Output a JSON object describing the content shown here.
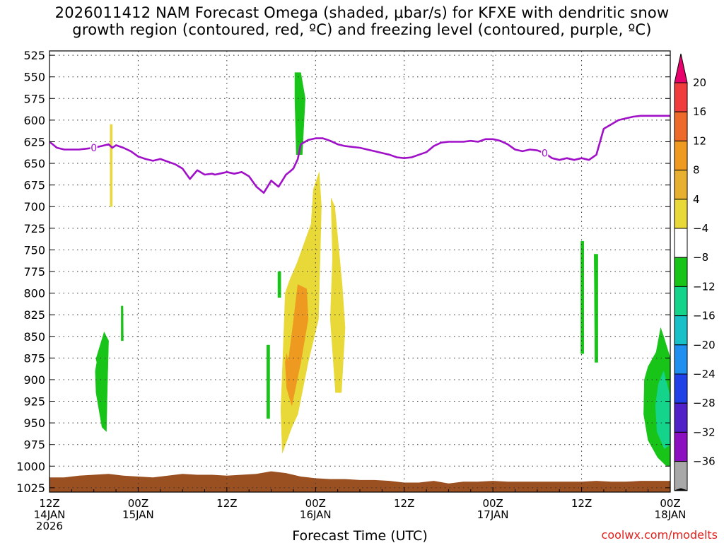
{
  "title": {
    "line1": "2026011412 NAM Forecast Omega (shaded, μbar/s) for KFXE with dendritic snow",
    "line2": "growth region (contoured, red, ºC) and freezing level (contoured, purple, ºC)"
  },
  "credit": "coolwx.com/modelts",
  "chart_data": {
    "type": "area",
    "title": "2026011412 NAM Forecast Omega (shaded, μbar/s) for KFXE with dendritic snow growth region (contoured, red, ºC) and freezing level (contoured, purple, ºC)",
    "xlabel": "Forecast Time (UTC)",
    "ylabel": "",
    "ylim": [
      1030,
      520
    ],
    "xlim": [
      0,
      84
    ],
    "y_ticks": [
      "525",
      "550",
      "575",
      "600",
      "625",
      "650",
      "675",
      "700",
      "725",
      "750",
      "775",
      "800",
      "825",
      "850",
      "875",
      "900",
      "925",
      "950",
      "975",
      "1000",
      "1025"
    ],
    "x_ticks": [
      {
        "hour": 0,
        "line1": "12Z",
        "line2": "14JAN",
        "line3": "2026"
      },
      {
        "hour": 12,
        "line1": "00Z",
        "line2": "15JAN",
        "line3": ""
      },
      {
        "hour": 24,
        "line1": "12Z",
        "line2": "",
        "line3": ""
      },
      {
        "hour": 36,
        "line1": "00Z",
        "line2": "16JAN",
        "line3": ""
      },
      {
        "hour": 48,
        "line1": "12Z",
        "line2": "",
        "line3": ""
      },
      {
        "hour": 60,
        "line1": "00Z",
        "line2": "17JAN",
        "line3": ""
      },
      {
        "hour": 72,
        "line1": "12Z",
        "line2": "",
        "line3": ""
      },
      {
        "hour": 84,
        "line1": "00Z",
        "line2": "18JAN",
        "line3": ""
      }
    ],
    "grid": true,
    "colorbar": {
      "labels": [
        "20",
        "16",
        "12",
        "8",
        "4",
        "−4",
        "−8",
        "−12",
        "−16",
        "−20",
        "−24",
        "−28",
        "−32",
        "−36"
      ],
      "colors": [
        "#e8006c",
        "#f03c3c",
        "#ee6a2a",
        "#ee9a20",
        "#e8b030",
        "#e8d838",
        "#ffffff",
        "#18c418",
        "#14d48c",
        "#18c0c8",
        "#2090f0",
        "#2040e8",
        "#5020c8",
        "#8c10c0",
        "#a8a8a8",
        "#000000"
      ]
    },
    "freezing_level": {
      "name": "freezing level",
      "label": "0",
      "color": "#a010c8",
      "x": [
        0,
        1,
        2,
        3,
        4,
        5,
        6,
        7,
        8,
        8.5,
        9,
        10,
        11,
        12,
        13,
        14,
        15,
        16,
        17,
        18,
        19,
        20,
        21,
        22,
        22.4,
        23,
        24,
        25,
        26,
        27,
        28,
        29,
        30,
        31,
        32,
        32.6,
        33,
        33.6,
        34,
        35,
        36,
        37,
        38,
        39,
        40,
        41,
        42,
        43,
        44,
        45,
        46,
        47,
        48,
        49,
        50,
        51,
        52,
        53,
        54,
        55,
        56,
        57,
        58,
        59,
        60,
        61,
        62,
        63,
        64,
        65,
        66,
        67,
        68,
        69,
        70,
        71,
        72,
        73,
        74,
        75,
        76,
        77,
        78,
        79,
        80,
        80.6,
        81,
        82,
        83,
        84
      ],
      "y": [
        625,
        632,
        634,
        634,
        634,
        633,
        632,
        630,
        628,
        632,
        629,
        632,
        636,
        642,
        645,
        647,
        645,
        648,
        651,
        656,
        668,
        658,
        663,
        662,
        663,
        662,
        660,
        662,
        660,
        665,
        677,
        684,
        670,
        677,
        663,
        659,
        656,
        645,
        628,
        623,
        621,
        621,
        624,
        628,
        630,
        631,
        632,
        634,
        636,
        638,
        640,
        643,
        644,
        643,
        640,
        637,
        630,
        626,
        625,
        625,
        625,
        624,
        625,
        622,
        622,
        624,
        628,
        634,
        636,
        634,
        635,
        638,
        644,
        646,
        644,
        646,
        644,
        646,
        640,
        610,
        605,
        600,
        598,
        596,
        595,
        595,
        595,
        595,
        595,
        595
      ]
    },
    "omega_regions": [
      {
        "category": "4 to 8",
        "color": "#e8d838",
        "x": [
          8.2,
          8.5,
          8.5,
          8.2
        ],
        "y": [
          605,
          605,
          700,
          700
        ]
      },
      {
        "category": "-4 to -8",
        "color": "#18c418",
        "x": [
          6.3,
          7.4,
          8.0,
          7.8,
          7.7,
          7.1,
          6.3,
          6.2,
          6.4
        ],
        "y": [
          876,
          845,
          855,
          920,
          960,
          955,
          915,
          890,
          880
        ]
      },
      {
        "category": "-4 to -8",
        "color": "#18c418",
        "x": [
          9.7,
          9.95,
          10.0,
          9.7
        ],
        "y": [
          815,
          815,
          855,
          855
        ]
      },
      {
        "category": "-4 to -8",
        "color": "#18c418",
        "x": [
          33.2,
          34.0,
          34.6,
          34.2,
          33.4,
          33.2
        ],
        "y": [
          545,
          545,
          575,
          640,
          640,
          575
        ]
      },
      {
        "category": "-4 to -8",
        "color": "#18c418",
        "x": [
          30.9,
          31.3,
          31.3,
          30.9
        ],
        "y": [
          775,
          775,
          805,
          805
        ]
      },
      {
        "category": "-4 to -8",
        "color": "#18c418",
        "x": [
          29.4,
          29.8,
          29.8,
          29.4
        ],
        "y": [
          860,
          860,
          945,
          945
        ]
      },
      {
        "category": "4 to 8",
        "color": "#e8d838",
        "x": [
          32.5,
          33.5,
          35.4,
          35.7,
          36.5,
          36.8,
          36.4,
          35.0,
          33.6,
          32.8,
          31.5,
          31.3,
          31.6,
          31.9
        ],
        "y": [
          785,
          765,
          720,
          680,
          660,
          700,
          830,
          880,
          940,
          955,
          985,
          935,
          870,
          800
        ]
      },
      {
        "category": "8 to 12",
        "color": "#ee9a20",
        "x": [
          32.3,
          32.9,
          33.6,
          34.8,
          35.0,
          34.0,
          32.8,
          32.1,
          31.9,
          32.1
        ],
        "y": [
          880,
          840,
          790,
          795,
          830,
          880,
          930,
          910,
          880,
          870
        ]
      },
      {
        "category": "4 to 8",
        "color": "#e8d838",
        "x": [
          38.1,
          38.6,
          39.6,
          40.0,
          39.5,
          38.7,
          38.0,
          38.3
        ],
        "y": [
          690,
          700,
          790,
          840,
          915,
          915,
          830,
          760
        ]
      },
      {
        "category": "-4 to -8",
        "color": "#18c418",
        "x": [
          71.9,
          72.3,
          72.3,
          71.9
        ],
        "y": [
          740,
          740,
          870,
          870
        ]
      },
      {
        "category": "-4 to -8",
        "color": "#18c418",
        "x": [
          73.7,
          74.2,
          74.2,
          73.8
        ],
        "y": [
          755,
          755,
          880,
          880
        ]
      },
      {
        "category": "-4 to -8",
        "color": "#18c418",
        "x": [
          82.1,
          82.7,
          83.1,
          84.0,
          84.0,
          83.5,
          82.3,
          81.0,
          80.4,
          80.5,
          81.0
        ],
        "y": [
          868,
          840,
          850,
          875,
          1000,
          1000,
          990,
          970,
          940,
          900,
          885
        ]
      },
      {
        "category": "-8 to -12",
        "color": "#14d48c",
        "x": [
          82.4,
          83.1,
          84.0,
          84.0,
          83.2,
          82.2,
          82.0
        ],
        "y": [
          905,
          890,
          920,
          975,
          980,
          960,
          930
        ]
      }
    ],
    "terrain": {
      "name": "surface",
      "color": "#9b5022",
      "x": [
        0,
        2,
        4,
        6,
        8,
        10,
        12,
        14,
        16,
        18,
        20,
        22,
        24,
        26,
        28,
        30,
        32,
        34,
        36,
        38,
        40,
        42,
        44,
        46,
        48,
        50,
        52,
        54,
        56,
        58,
        60,
        62,
        64,
        66,
        68,
        70,
        72,
        74,
        76,
        78,
        80,
        82,
        84
      ],
      "y": [
        1013,
        1013,
        1011,
        1010,
        1009,
        1011,
        1012,
        1013,
        1011,
        1009,
        1010,
        1010,
        1011,
        1010,
        1009,
        1006,
        1008,
        1012,
        1014,
        1015,
        1015,
        1016,
        1016,
        1017,
        1019,
        1019,
        1017,
        1020,
        1018,
        1018,
        1017,
        1018,
        1018,
        1018,
        1018,
        1018,
        1018,
        1017,
        1018,
        1018,
        1017,
        1017,
        1017
      ]
    }
  }
}
